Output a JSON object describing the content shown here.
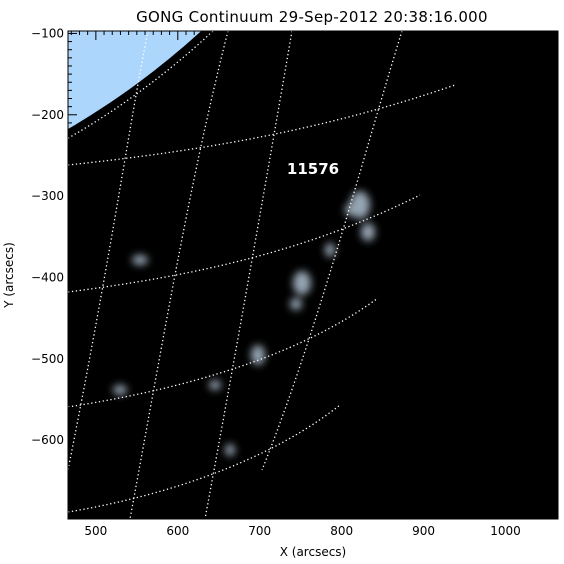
{
  "title": "GONG Continuum 29-Sep-2012 20:38:16.000",
  "x_axis": {
    "label": "X (arcsecs)",
    "range": [
      466,
      1064
    ],
    "ticks": [
      {
        "value": 500,
        "label": "500"
      },
      {
        "value": 600,
        "label": "600"
      },
      {
        "value": 700,
        "label": "700"
      },
      {
        "value": 800,
        "label": "800"
      },
      {
        "value": 900,
        "label": "900"
      },
      {
        "value": 1000,
        "label": "1000"
      }
    ],
    "minor_step": 10
  },
  "y_axis": {
    "label": "Y (arcsecs)",
    "range": [
      -697,
      -97
    ],
    "ticks": [
      {
        "value": -100,
        "label": "−100"
      },
      {
        "value": -200,
        "label": "−200"
      },
      {
        "value": -300,
        "label": "−300"
      },
      {
        "value": -400,
        "label": "−400"
      },
      {
        "value": -500,
        "label": "−500"
      },
      {
        "value": -600,
        "label": "−600"
      }
    ],
    "minor_step": 10
  },
  "solar_radius_arcsec": 950,
  "active_region": {
    "label": "11576"
  },
  "colors": {
    "disk_center": "#bfe0ff",
    "disk_mid": "#a6d2fb",
    "limb": "#1e55d0",
    "limb_edge": "#0a1a6e",
    "space": "#000000",
    "grid": "#ffffff"
  }
}
